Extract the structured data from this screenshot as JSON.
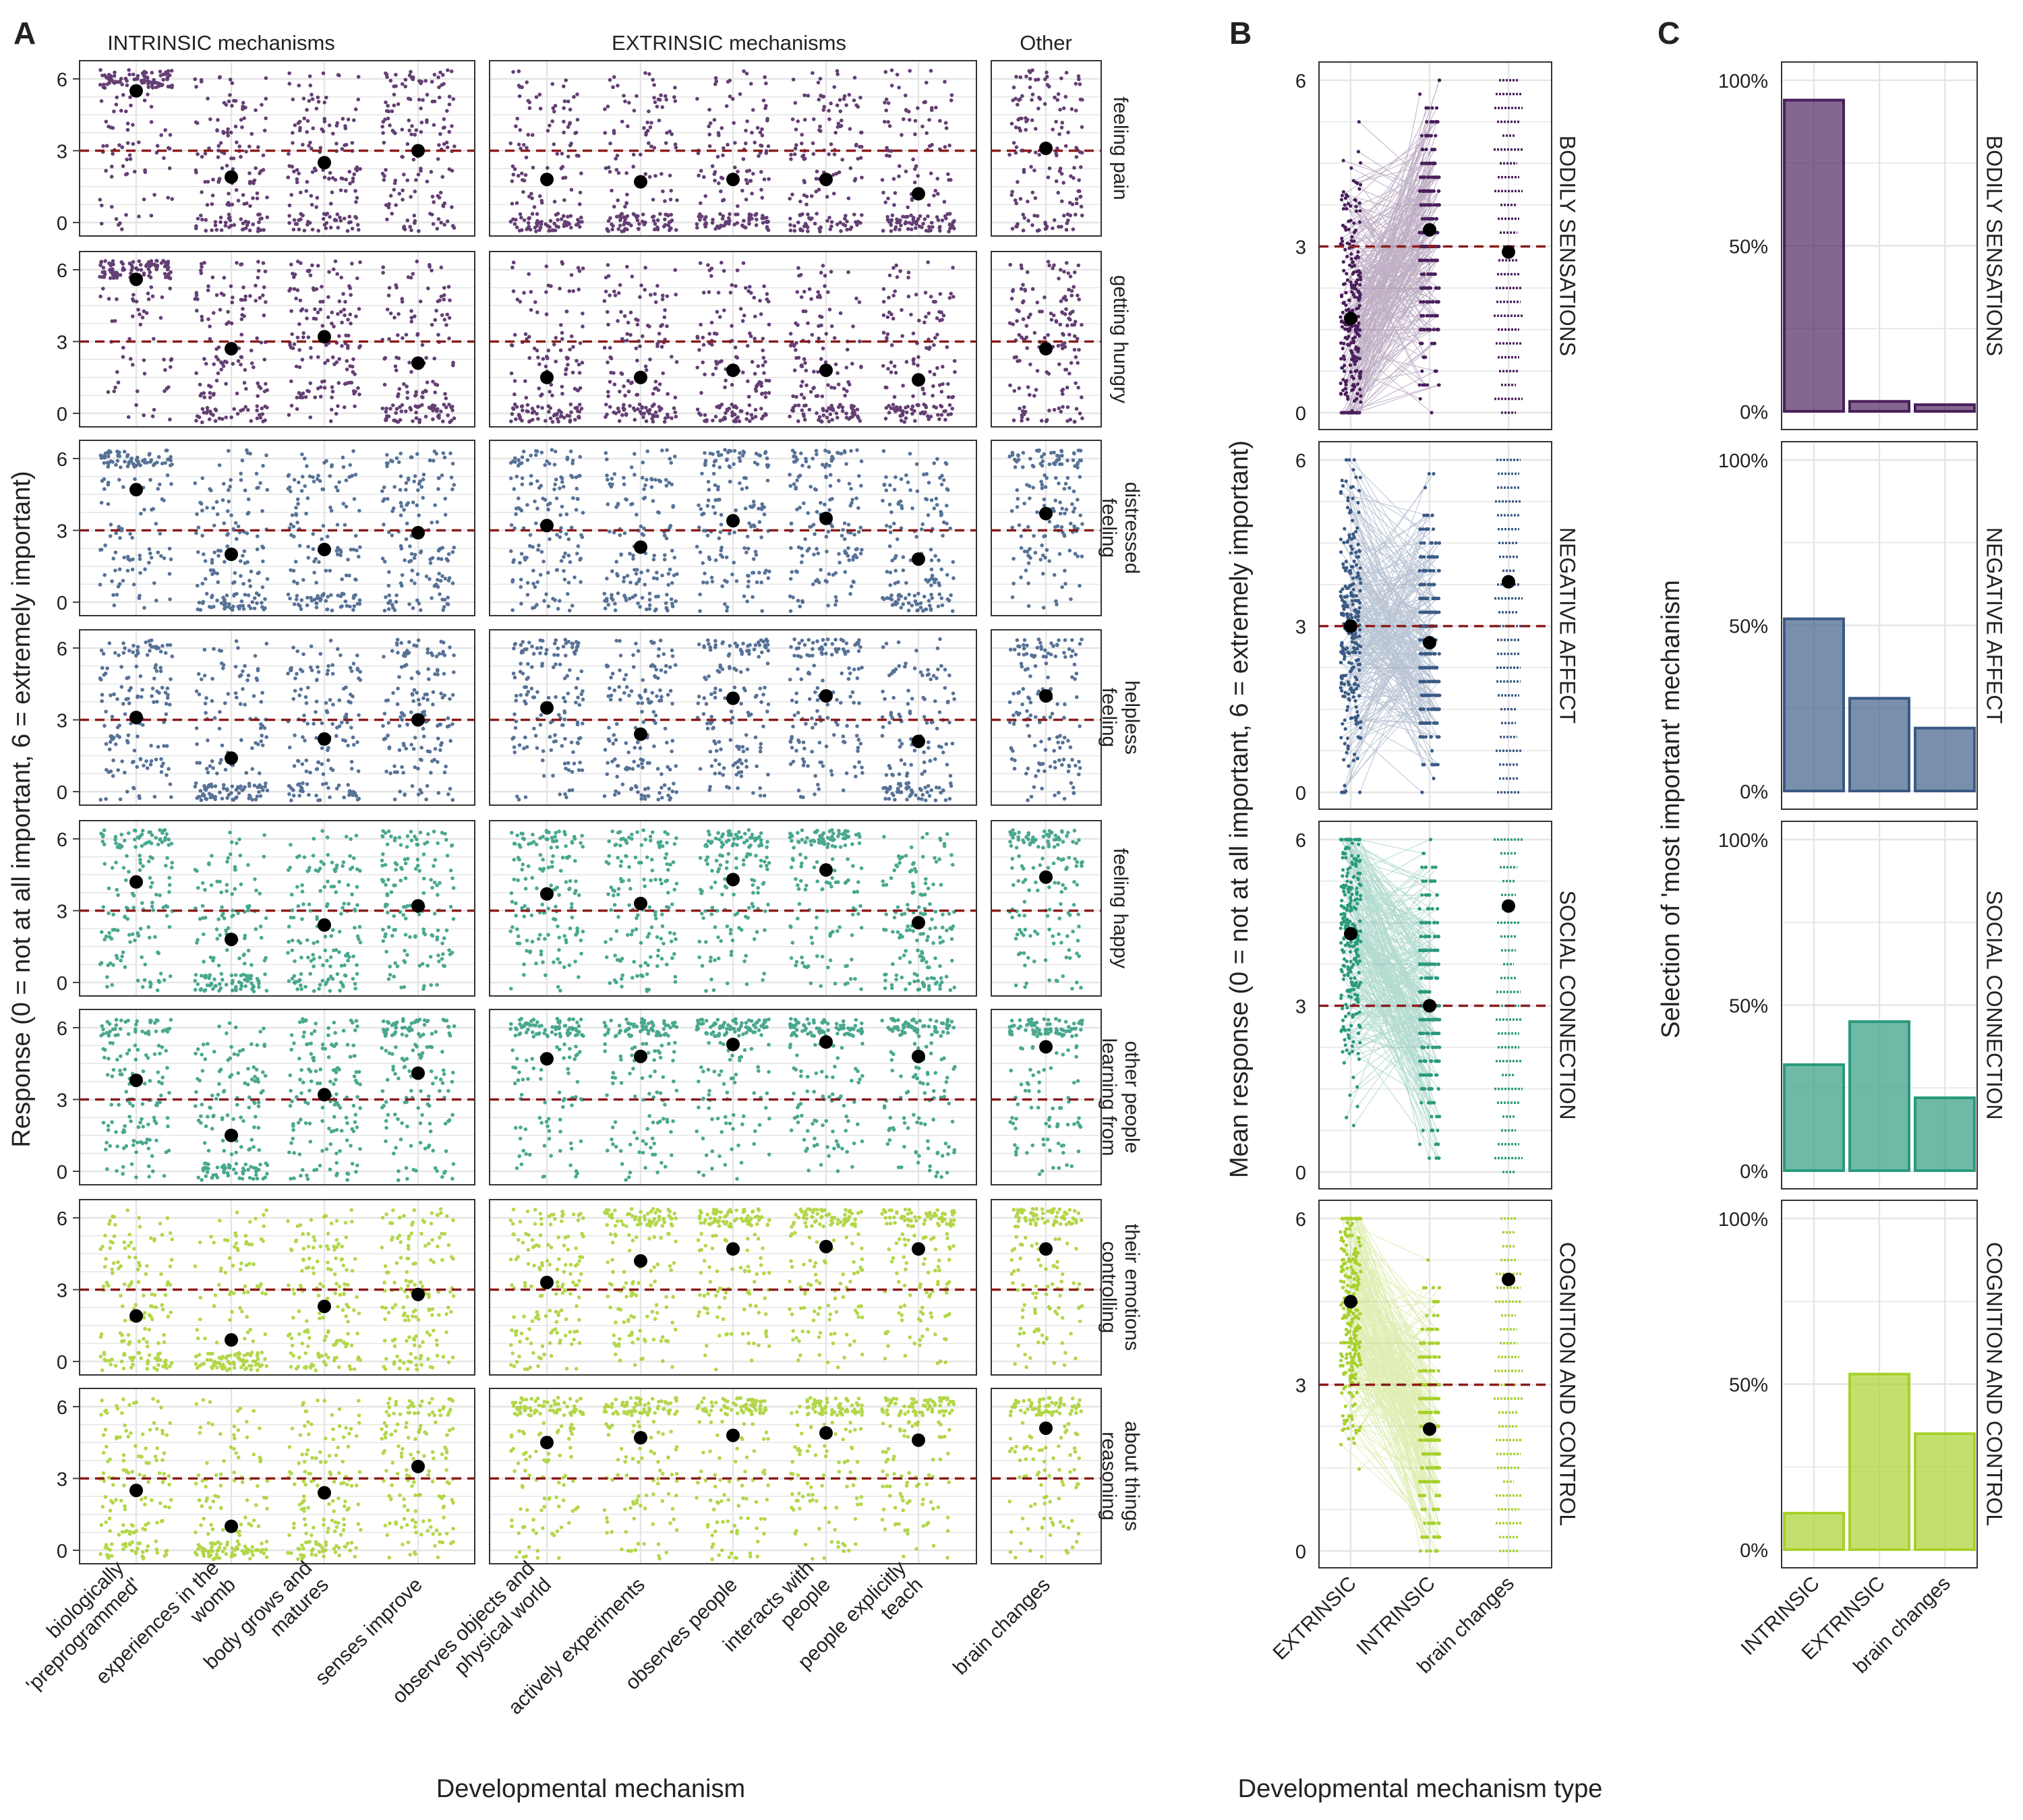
{
  "figure": {
    "panel_letters": [
      "A",
      "B",
      "C"
    ],
    "colors": {
      "bodily": "#4a1e5c",
      "negative": "#3a5a85",
      "social": "#2a9a7c",
      "cognition": "#a6d12b",
      "reference_line": "#8b1a1a",
      "mean_point": "#000000",
      "grid": "#e5e5e5",
      "panel_border": "#333333"
    }
  },
  "chart_data": [
    {
      "panel": "A",
      "type": "scatter",
      "ylabel": "Response (0 = not at all important, 6 = extremely important)",
      "xlabel": "Developmental mechanism",
      "ylim": [
        0,
        6
      ],
      "yticks": [
        0,
        3,
        6
      ],
      "reference_line_y": 3,
      "groups": [
        {
          "label": "INTRINSIC mechanisms",
          "categories": [
            "biologically 'preprogrammed'",
            "experiences in the womb",
            "body grows and matures",
            "senses improve"
          ]
        },
        {
          "label": "EXTRINSIC mechanisms",
          "categories": [
            "observes objects and physical world",
            "actively experiments",
            "observes people",
            "interacts with people",
            "people explicitly teach"
          ]
        },
        {
          "label": "Other",
          "categories": [
            "brain changes"
          ]
        }
      ],
      "category_labels": [
        [
          "biologically",
          "'preprogrammed'"
        ],
        [
          "experiences in the",
          "womb"
        ],
        [
          "body grows and",
          "matures"
        ],
        [
          "senses improve"
        ],
        [
          "observes objects and",
          "physical world"
        ],
        [
          "actively experiments"
        ],
        [
          "observes people"
        ],
        [
          "interacts with",
          "people"
        ],
        [
          "people explicitly",
          "teach"
        ],
        [
          "brain changes"
        ]
      ],
      "rows": [
        {
          "label": [
            "feeling pain"
          ],
          "category_group": "bodily",
          "means": [
            5.5,
            1.9,
            2.5,
            3.0,
            1.8,
            1.7,
            1.8,
            1.8,
            1.2,
            3.1
          ]
        },
        {
          "label": [
            "getting hungry"
          ],
          "category_group": "bodily",
          "means": [
            5.6,
            2.7,
            3.2,
            2.1,
            1.5,
            1.5,
            1.8,
            1.8,
            1.4,
            2.7
          ]
        },
        {
          "label": [
            "feeling",
            "distressed"
          ],
          "category_group": "negative",
          "means": [
            4.7,
            2.0,
            2.2,
            2.9,
            3.2,
            2.3,
            3.4,
            3.5,
            1.8,
            3.7
          ]
        },
        {
          "label": [
            "feeling",
            "helpless"
          ],
          "category_group": "negative",
          "means": [
            3.1,
            1.4,
            2.2,
            3.0,
            3.5,
            2.4,
            3.9,
            4.0,
            2.1,
            4.0
          ]
        },
        {
          "label": [
            "feeling happy"
          ],
          "category_group": "social",
          "means": [
            4.2,
            1.8,
            2.4,
            3.2,
            3.7,
            3.3,
            4.3,
            4.7,
            2.5,
            4.4
          ]
        },
        {
          "label": [
            "learning from",
            "other people"
          ],
          "category_group": "social",
          "means": [
            3.8,
            1.5,
            3.2,
            4.1,
            4.7,
            4.8,
            5.3,
            5.4,
            4.8,
            5.2
          ]
        },
        {
          "label": [
            "controlling",
            "their emotions"
          ],
          "category_group": "cognition",
          "means": [
            1.9,
            0.9,
            2.3,
            2.8,
            3.3,
            4.2,
            4.7,
            4.8,
            4.7,
            4.7
          ]
        },
        {
          "label": [
            "reasoning",
            "about things"
          ],
          "category_group": "cognition",
          "means": [
            2.5,
            1.0,
            2.4,
            3.5,
            4.5,
            4.7,
            4.8,
            4.9,
            4.6,
            5.1
          ]
        }
      ]
    },
    {
      "panel": "B",
      "type": "scatter",
      "ylabel": "Mean response (0 = not at all important, 6 = extremely important)",
      "xlabel": "Developmental mechanism type",
      "categories": [
        "EXTRINSIC",
        "INTRINSIC",
        "brain changes"
      ],
      "ylim": [
        0,
        6
      ],
      "yticks": [
        0,
        3,
        6
      ],
      "reference_line_y": 3,
      "series": [
        {
          "name": "BODILY SENSATIONS",
          "category_group": "bodily",
          "values": [
            1.7,
            3.3,
            2.9
          ]
        },
        {
          "name": "NEGATIVE AFFECT",
          "category_group": "negative",
          "values": [
            3.0,
            2.7,
            3.8
          ]
        },
        {
          "name": "SOCIAL CONNECTION",
          "category_group": "social",
          "values": [
            4.3,
            3.0,
            4.8
          ]
        },
        {
          "name": "COGNITION AND CONTROL",
          "category_group": "cognition",
          "values": [
            4.5,
            2.2,
            4.9
          ]
        }
      ]
    },
    {
      "panel": "C",
      "type": "bar",
      "ylabel": "Selection of 'most important' mechanism",
      "categories": [
        "INTRINSIC",
        "EXTRINSIC",
        "brain changes"
      ],
      "ylim": [
        0,
        100
      ],
      "yticks": [
        "0%",
        "50%",
        "100%"
      ],
      "series": [
        {
          "name": "BODILY SENSATIONS",
          "category_group": "bodily",
          "values": [
            94,
            3,
            2
          ]
        },
        {
          "name": "NEGATIVE AFFECT",
          "category_group": "negative",
          "values": [
            52,
            28,
            19
          ]
        },
        {
          "name": "SOCIAL CONNECTION",
          "category_group": "social",
          "values": [
            32,
            45,
            22
          ]
        },
        {
          "name": "COGNITION AND CONTROL",
          "category_group": "cognition",
          "values": [
            11,
            53,
            35
          ]
        }
      ]
    }
  ]
}
